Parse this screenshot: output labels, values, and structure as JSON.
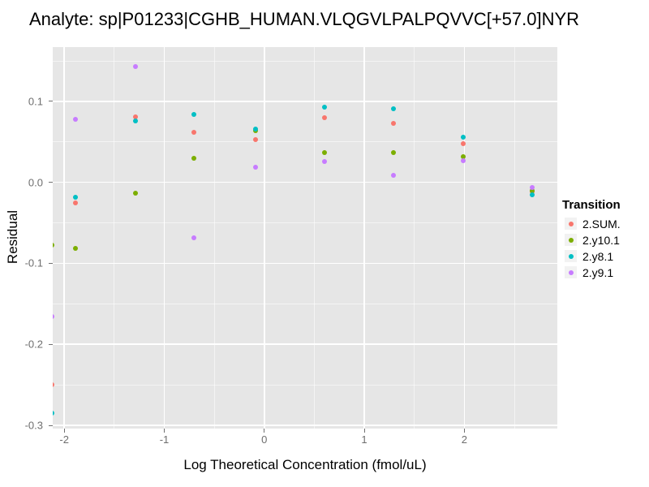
{
  "title": "Analyte: sp|P01233|CGHB_HUMAN.VLQGVLPALPQVVC[+57.0]NYR",
  "colors": {
    "panel_bg": "#E6E6E6",
    "grid": "#FFFFFF",
    "axis_text": "#6e6e6e",
    "tick_mark": "#707070",
    "legend_key_bg": "#F2F2F2"
  },
  "chart_data": {
    "type": "scatter",
    "title": "Analyte: sp|P01233|CGHB_HUMAN.VLQGVLPALPQVVC[+57.0]NYR",
    "xlabel": "Log Theoretical Concentration (fmol/uL)",
    "ylabel": "Residual",
    "xlim": [
      -2.115,
      2.93
    ],
    "ylim": [
      -0.304,
      0.167
    ],
    "grid": true,
    "legend_position": "right",
    "legend_title": "Transition",
    "x_ticks": {
      "values": [
        -2,
        -1,
        0,
        1,
        2
      ],
      "labels": [
        "-2",
        "-1",
        "0",
        "1",
        "2"
      ]
    },
    "y_ticks": {
      "values": [
        0.1,
        0.0,
        -0.1,
        -0.2,
        -0.3
      ],
      "labels": [
        "0.1",
        "0.0",
        "-0.1",
        "-0.2",
        "-0.3"
      ]
    },
    "x_minor": [
      -1.5,
      -0.5,
      0.5,
      1.5,
      2.5
    ],
    "y_minor": [
      0.15,
      0.05,
      -0.05,
      -0.15,
      -0.25
    ],
    "x": [
      -2.12,
      -1.89,
      -1.29,
      -0.7,
      -0.09,
      0.6,
      1.29,
      1.99,
      2.68
    ],
    "series": [
      {
        "name": "2.SUM.",
        "color": "#F8766D",
        "values": [
          -0.25,
          -0.025,
          0.081,
          0.062,
          0.053,
          0.08,
          0.073,
          0.048,
          -0.011
        ]
      },
      {
        "name": "2.y10.1",
        "color": "#7CAE00",
        "values": [
          -0.078,
          -0.082,
          -0.013,
          0.03,
          0.064,
          0.037,
          0.037,
          0.032,
          -0.01
        ]
      },
      {
        "name": "2.y8.1",
        "color": "#00BFC4",
        "values": [
          -0.285,
          -0.018,
          0.076,
          0.084,
          0.066,
          0.093,
          0.091,
          0.056,
          -0.015
        ]
      },
      {
        "name": "2.y9.1",
        "color": "#C77CFF",
        "values": [
          -0.166,
          0.078,
          0.143,
          -0.069,
          0.019,
          0.026,
          0.009,
          0.027,
          -0.006
        ]
      }
    ]
  }
}
